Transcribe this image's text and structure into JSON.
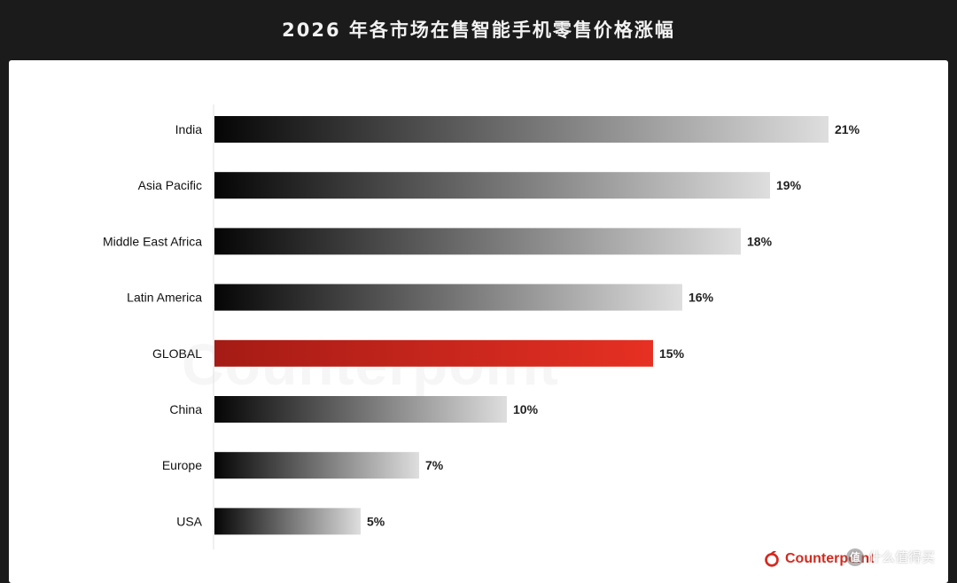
{
  "title": "2026 年各市场在售智能手机零售价格涨幅",
  "watermark_text": "Counterpoint",
  "brand": "Counterpoint",
  "credit": "什么值得买",
  "chart_data": {
    "type": "bar",
    "orientation": "horizontal",
    "categories": [
      "India",
      "Asia Pacific",
      "Middle East Africa",
      "Latin America",
      "GLOBAL",
      "China",
      "Europe",
      "USA"
    ],
    "values": [
      21,
      19,
      18,
      16,
      15,
      10,
      7,
      5
    ],
    "data_labels": [
      "21%",
      "19%",
      "18%",
      "16%",
      "15%",
      "10%",
      "7%",
      "5%"
    ],
    "highlight": "GLOBAL",
    "colors": {
      "highlight_start": "#a51b15",
      "highlight_end": "#e63023",
      "bar_start": "#050505",
      "bar_end": "#dedede"
    },
    "xlim": [
      0,
      21
    ],
    "grid": false,
    "legend": "none"
  }
}
